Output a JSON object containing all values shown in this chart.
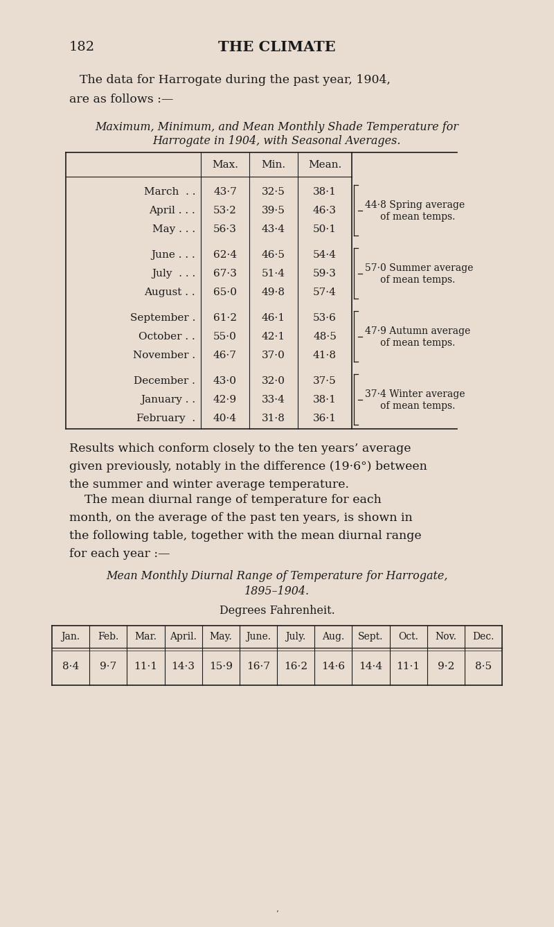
{
  "bg_color": "#e8ddd0",
  "text_color": "#1a1a1a",
  "page_number": "182",
  "page_title": "THE CLIMATE",
  "intro_text_line1": "The data for Harrogate during the past year, 1904,",
  "intro_text_line2": "are as follows :—",
  "table1_title_line1": "Maximum, Minimum, and Mean Monthly Shade Temperature for",
  "table1_title_line2": "Harrogate in 1904, with Seasonal Averages.",
  "table1_col_headers": [
    "Max.",
    "Min.",
    "Mean."
  ],
  "table1_rows": [
    {
      "month": "March  . .",
      "max": "43·7",
      "min": "32·5",
      "mean": "38·1"
    },
    {
      "month": "April . . .",
      "max": "53·2",
      "min": "39·5",
      "mean": "46·3"
    },
    {
      "month": "May . . .",
      "max": "56·3",
      "min": "43·4",
      "mean": "50·1"
    },
    {
      "month": "June . . .",
      "max": "62·4",
      "min": "46·5",
      "mean": "54·4"
    },
    {
      "month": "July  . . .",
      "max": "67·3",
      "min": "51·4",
      "mean": "59·3"
    },
    {
      "month": "August . .",
      "max": "65·0",
      "min": "49·8",
      "mean": "57·4"
    },
    {
      "month": "September .",
      "max": "61·2",
      "min": "46·1",
      "mean": "53·6"
    },
    {
      "month": "October . .",
      "max": "55·0",
      "min": "42·1",
      "mean": "48·5"
    },
    {
      "month": "November .",
      "max": "46·7",
      "min": "37·0",
      "mean": "41·8"
    },
    {
      "month": "December .",
      "max": "43·0",
      "min": "32·0",
      "mean": "37·5"
    },
    {
      "month": "January . .",
      "max": "42·9",
      "min": "33·4",
      "mean": "38·1"
    },
    {
      "month": "February  .",
      "max": "40·4",
      "min": "31·8",
      "mean": "36·1"
    }
  ],
  "seasonal_annotations": [
    {
      "rows": [
        0,
        1,
        2
      ],
      "value": "44·8",
      "label1": "Spring average",
      "label2": "of mean temps."
    },
    {
      "rows": [
        3,
        4,
        5
      ],
      "value": "57·0",
      "label1": "Summer average",
      "label2": "of mean temps."
    },
    {
      "rows": [
        6,
        7,
        8
      ],
      "value": "47·9",
      "label1": "Autumn average",
      "label2": "of mean temps."
    },
    {
      "rows": [
        9,
        10,
        11
      ],
      "value": "37·4",
      "label1": "Winter average",
      "label2": "of mean temps."
    }
  ],
  "para1_line1": "Results which conform closely to the ten years’ average",
  "para1_line2": "given previously, notably in the difference (19·6°) between",
  "para1_line3": "the summer and winter average temperature.",
  "para2_line1": "    The mean diurnal range of temperature for each",
  "para2_line2": "month, on the average of the past ten years, is shown in",
  "para2_line3": "the following table, together with the mean diurnal range",
  "para2_line4": "for each year :—",
  "table2_title_line1": "Mean Monthly Diurnal Range of Temperature for Harrogate,",
  "table2_title_line2": "1895–1904.",
  "table2_subtitle": "Degrees Fahrenheit.",
  "table2_headers": [
    "Jan.",
    "Feb.",
    "Mar.",
    "April.",
    "May.",
    "June.",
    "July.",
    "Aug.",
    "Sept.",
    "Oct.",
    "Nov.",
    "Dec."
  ],
  "table2_values": [
    "8·4",
    "9·7",
    "11·1",
    "14·3",
    "15·9",
    "16·7",
    "16·2",
    "14·6",
    "14·4",
    "11·1",
    "9·2",
    "8·5"
  ]
}
